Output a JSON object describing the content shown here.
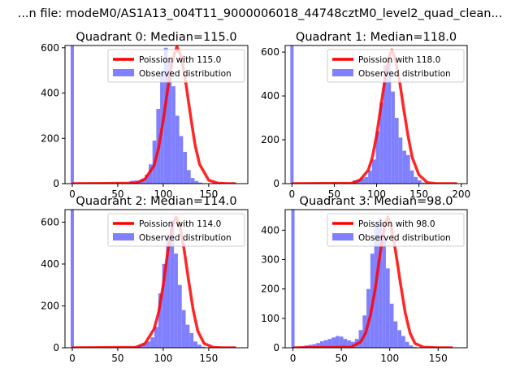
{
  "suptitle": "...n file: modeM0/AS1A13_004T11_9000006018_44748cztM0_level2_quad_clean...",
  "colors": {
    "hist": "#8080ff",
    "poisson": "#ff0000"
  },
  "chart_data": [
    {
      "type": "bar",
      "title": "Quadrant 0: Median=115.0",
      "xlim": [
        -8,
        193
      ],
      "ylim": [
        0,
        610
      ],
      "xticks": [
        0,
        50,
        100,
        150
      ],
      "yticks": [
        0,
        200,
        400,
        600
      ],
      "legend": {
        "placement": "top-right",
        "entries": [
          "Poission with 115.0",
          "Observed distribution"
        ]
      },
      "median": 115.0,
      "hist": {
        "bin_width": 4.2,
        "counts": [
          0,
          0,
          0,
          0,
          0,
          0,
          0,
          0,
          0,
          0,
          0,
          0,
          0,
          0,
          0,
          12,
          14,
          10,
          20,
          40,
          85,
          190,
          330,
          490,
          600,
          540,
          430,
          300,
          210,
          140,
          60,
          25,
          12,
          5,
          2
        ],
        "x": [
          0,
          4.2,
          8.4,
          12.6,
          16.8,
          21,
          25.2,
          29.4,
          33.6,
          37.8,
          42,
          46.2,
          50.4,
          54.6,
          58.8,
          63,
          67.2,
          71.4,
          75.6,
          79.8,
          84,
          88.2,
          92.4,
          96.6,
          100.8,
          105,
          109.2,
          113.4,
          117.6,
          121.8,
          126,
          130.2,
          134.4,
          138.6,
          142.8
        ]
      },
      "spike": {
        "x": 0,
        "count": 610
      },
      "poisson": {
        "x": [
          0,
          70,
          80,
          90,
          95,
          100,
          105,
          110,
          115,
          120,
          125,
          130,
          135,
          140,
          150,
          160,
          170,
          180
        ],
        "y": [
          0,
          2,
          20,
          80,
          160,
          280,
          420,
          540,
          605,
          560,
          440,
          300,
          170,
          85,
          15,
          2,
          0,
          0
        ]
      }
    },
    {
      "type": "bar",
      "title": "Quadrant 1: Median=118.0",
      "xlim": [
        -8,
        207
      ],
      "ylim": [
        0,
        630
      ],
      "xticks": [
        0,
        50,
        100,
        150,
        200
      ],
      "yticks": [
        0,
        200,
        400,
        600
      ],
      "legend": {
        "placement": "top-right",
        "entries": [
          "Poission with 118.0",
          "Observed distribution"
        ]
      },
      "median": 118.0,
      "hist": {
        "bin_width": 4.5,
        "counts": [
          0,
          0,
          0,
          0,
          0,
          0,
          0,
          0,
          0,
          0,
          0,
          0,
          0,
          0,
          0,
          0,
          15,
          20,
          25,
          30,
          60,
          110,
          240,
          370,
          540,
          560,
          420,
          300,
          210,
          150,
          130,
          60,
          30,
          15,
          5,
          2
        ],
        "x": [
          0,
          4.5,
          9,
          13.5,
          18,
          22.5,
          27,
          31.5,
          36,
          40.5,
          45,
          49.5,
          54,
          58.5,
          63,
          67.5,
          72,
          76.5,
          81,
          85.5,
          90,
          94.5,
          99,
          103.5,
          108,
          112.5,
          117,
          121.5,
          126,
          130.5,
          135,
          139.5,
          144,
          148.5,
          153,
          157.5
        ]
      },
      "spike": {
        "x": 0,
        "count": 630
      },
      "poisson": {
        "x": [
          0,
          70,
          80,
          90,
          95,
          100,
          105,
          110,
          115,
          118,
          122,
          127,
          132,
          137,
          142,
          150,
          160,
          170,
          195
        ],
        "y": [
          0,
          2,
          15,
          60,
          120,
          220,
          350,
          480,
          580,
          610,
          570,
          470,
          340,
          220,
          120,
          40,
          5,
          0,
          0
        ]
      }
    },
    {
      "type": "bar",
      "title": "Quadrant 2: Median=114.0",
      "xlim": [
        -8,
        193
      ],
      "ylim": [
        0,
        660
      ],
      "xticks": [
        0,
        50,
        100,
        150
      ],
      "yticks": [
        0,
        200,
        400,
        600
      ],
      "legend": {
        "placement": "top-right",
        "entries": [
          "Poission with 114.0",
          "Observed distribution"
        ]
      },
      "median": 114.0,
      "hist": {
        "bin_width": 4.3,
        "counts": [
          0,
          0,
          0,
          0,
          0,
          0,
          0,
          0,
          0,
          0,
          0,
          0,
          0,
          0,
          0,
          0,
          8,
          12,
          20,
          30,
          50,
          100,
          260,
          400,
          540,
          610,
          450,
          300,
          180,
          110,
          70,
          30,
          15,
          5
        ],
        "x": [
          0,
          4.3,
          8.6,
          12.9,
          17.2,
          21.5,
          25.8,
          30.1,
          34.4,
          38.7,
          43,
          47.3,
          51.6,
          55.9,
          60.2,
          64.5,
          68.8,
          73.1,
          77.4,
          81.7,
          86,
          90.3,
          94.6,
          98.9,
          103.2,
          107.5,
          111.8,
          116.1,
          120.4,
          124.7,
          129,
          133.3,
          137.6,
          141.9
        ]
      },
      "spike": {
        "x": 0,
        "count": 660
      },
      "poisson": {
        "x": [
          0,
          70,
          80,
          90,
          95,
          100,
          105,
          110,
          114,
          118,
          123,
          128,
          133,
          138,
          145,
          155,
          165,
          180
        ],
        "y": [
          0,
          2,
          20,
          90,
          170,
          300,
          460,
          580,
          625,
          590,
          470,
          320,
          180,
          80,
          20,
          2,
          0,
          0
        ]
      }
    },
    {
      "type": "bar",
      "title": "Quadrant 3: Median=98.0",
      "xlim": [
        -8,
        180
      ],
      "ylim": [
        0,
        470
      ],
      "xticks": [
        0,
        50,
        100,
        150
      ],
      "yticks": [
        0,
        100,
        200,
        300,
        400
      ],
      "legend": {
        "placement": "top-right",
        "entries": [
          "Poission with 98.0",
          "Observed distribution"
        ]
      },
      "median": 98.0,
      "hist": {
        "bin_width": 4.0,
        "counts": [
          0,
          0,
          5,
          8,
          10,
          12,
          16,
          22,
          26,
          30,
          35,
          40,
          38,
          30,
          25,
          20,
          30,
          60,
          110,
          200,
          320,
          420,
          440,
          380,
          270,
          150,
          90,
          60,
          40,
          20,
          8,
          3
        ],
        "x": [
          0,
          4,
          8,
          12,
          16,
          20,
          24,
          28,
          32,
          36,
          40,
          44,
          48,
          52,
          56,
          60,
          64,
          68,
          72,
          76,
          80,
          84,
          88,
          92,
          96,
          100,
          104,
          108,
          112,
          116,
          120,
          124
        ]
      },
      "spike": {
        "x": 0,
        "count": 470
      },
      "poisson": {
        "x": [
          0,
          60,
          70,
          75,
          80,
          85,
          90,
          95,
          98,
          101,
          106,
          111,
          116,
          121,
          126,
          135,
          150,
          165
        ],
        "y": [
          0,
          2,
          20,
          50,
          110,
          200,
          320,
          420,
          445,
          420,
          330,
          220,
          120,
          50,
          15,
          2,
          0,
          0
        ]
      }
    }
  ]
}
